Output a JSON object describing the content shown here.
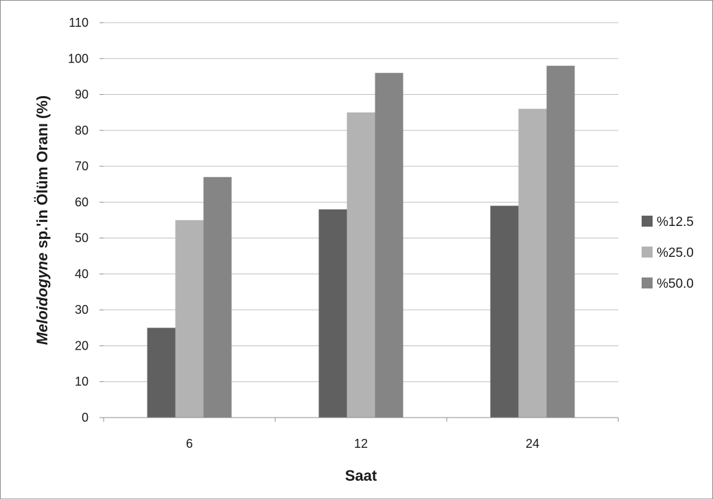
{
  "chart_data": {
    "type": "bar",
    "categories": [
      "6",
      "12",
      "24"
    ],
    "series": [
      {
        "name": "%12.5",
        "values": [
          25,
          58,
          59
        ],
        "color": "#606060"
      },
      {
        "name": "%25.0",
        "values": [
          55,
          85,
          86
        ],
        "color": "#b3b3b3"
      },
      {
        "name": "%50.0",
        "values": [
          67,
          96,
          98
        ],
        "color": "#858585"
      }
    ],
    "xlabel": "Saat",
    "ylabel": {
      "italic": "Meloidogyne",
      "rest": " sp.'in Ölüm Oranı (%)"
    },
    "ylim": [
      0,
      110
    ],
    "yticks": [
      0,
      10,
      20,
      30,
      40,
      50,
      60,
      70,
      80,
      90,
      100,
      110
    ],
    "grid": true,
    "legend_position": "right"
  }
}
